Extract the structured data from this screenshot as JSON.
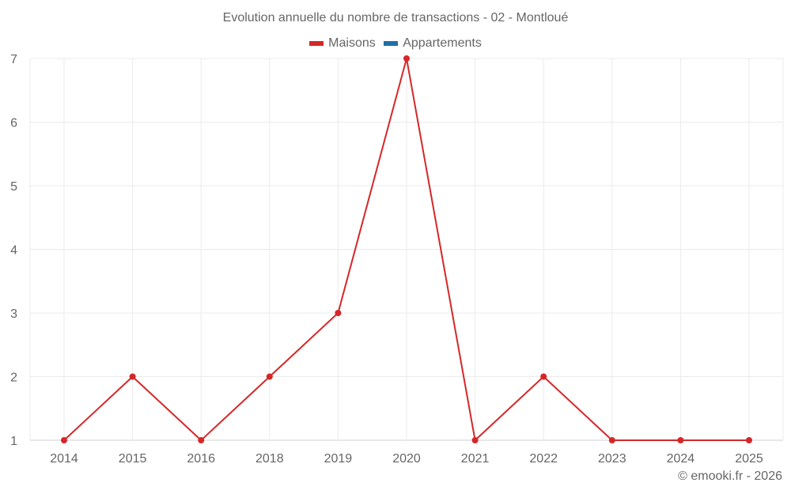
{
  "chart_data": {
    "type": "line",
    "title": "Evolution annuelle du nombre de transactions - 02 - Montloué",
    "categories": [
      "2014",
      "2015",
      "2016",
      "2018",
      "2019",
      "2020",
      "2021",
      "2022",
      "2023",
      "2024",
      "2025"
    ],
    "series": [
      {
        "name": "Maisons",
        "color": "#d62728",
        "values": [
          1,
          2,
          1,
          2,
          3,
          7,
          1,
          2,
          1,
          1,
          1
        ]
      },
      {
        "name": "Appartements",
        "color": "#1f6fa8",
        "values": []
      }
    ],
    "xlabel": "",
    "ylabel": "",
    "ylim": [
      1,
      7
    ],
    "yticks": [
      1,
      2,
      3,
      4,
      5,
      6,
      7
    ],
    "grid": true,
    "legend_position": "top"
  },
  "credit": "© emooki.fr - 2026"
}
